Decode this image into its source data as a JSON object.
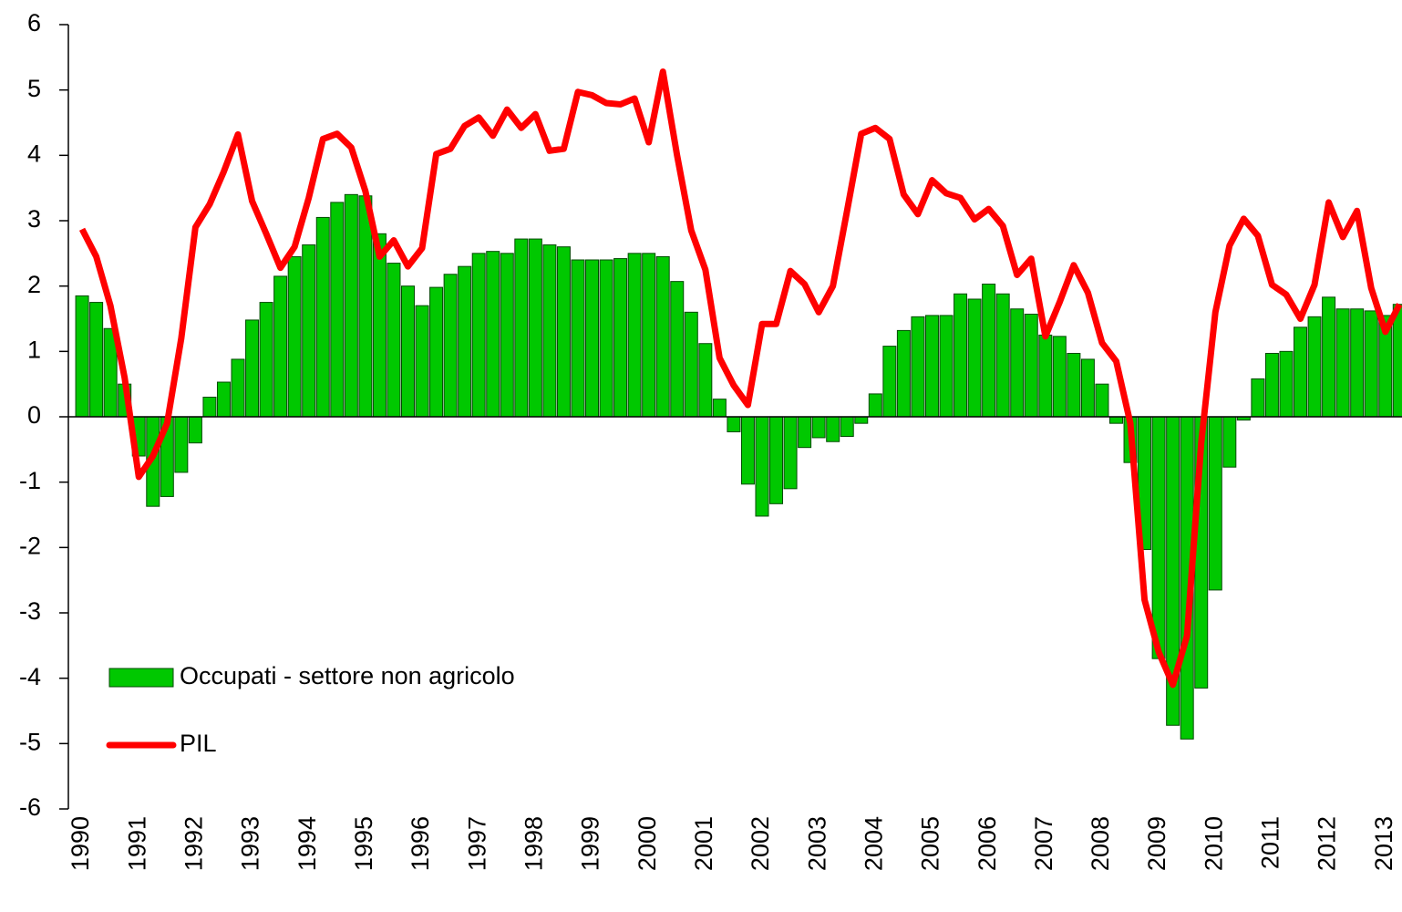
{
  "chart_data": {
    "type": "bar-line",
    "categories": [
      "1990",
      null,
      null,
      null,
      "1991",
      null,
      null,
      null,
      "1992",
      null,
      null,
      null,
      "1993",
      null,
      null,
      null,
      "1994",
      null,
      null,
      null,
      "1995",
      null,
      null,
      null,
      "1996",
      null,
      null,
      null,
      "1997",
      null,
      null,
      null,
      "1998",
      null,
      null,
      null,
      "1999",
      null,
      null,
      null,
      "2000",
      null,
      null,
      null,
      "2001",
      null,
      null,
      null,
      "2002",
      null,
      null,
      null,
      "2003",
      null,
      null,
      null,
      "2004",
      null,
      null,
      null,
      "2005",
      null,
      null,
      null,
      "2006",
      null,
      null,
      null,
      "2007",
      null,
      null,
      null,
      "2008",
      null,
      null,
      null,
      "2009",
      null,
      null,
      null,
      "2010",
      null,
      null,
      null,
      "2011",
      null,
      null,
      null,
      "2012",
      null,
      null,
      null,
      "2013",
      null
    ],
    "series": [
      {
        "name": "Occupati - settore non agricolo",
        "type": "bar",
        "color": "#00c800",
        "values": [
          1.85,
          1.75,
          1.35,
          0.5,
          -0.6,
          -1.37,
          -1.22,
          -0.85,
          -0.4,
          0.3,
          0.53,
          0.88,
          1.48,
          1.75,
          2.15,
          2.45,
          2.63,
          3.05,
          3.28,
          3.4,
          3.38,
          2.8,
          2.35,
          2.0,
          1.7,
          1.98,
          2.18,
          2.3,
          2.5,
          2.53,
          2.5,
          2.72,
          2.72,
          2.63,
          2.6,
          2.4,
          2.4,
          2.4,
          2.42,
          2.5,
          2.5,
          2.45,
          2.07,
          1.6,
          1.12,
          0.27,
          -0.23,
          -1.03,
          -1.52,
          -1.33,
          -1.1,
          -0.47,
          -0.32,
          -0.38,
          -0.3,
          -0.1,
          0.35,
          1.08,
          1.32,
          1.53,
          1.55,
          1.55,
          1.88,
          1.8,
          2.03,
          1.88,
          1.65,
          1.57,
          1.25,
          1.23,
          0.97,
          0.88,
          0.5,
          -0.1,
          -0.7,
          -2.03,
          -3.7,
          -4.72,
          -4.93,
          -4.15,
          -2.65,
          -0.77,
          -0.05,
          0.58,
          0.97,
          1.0,
          1.37,
          1.53,
          1.83,
          1.65,
          1.65,
          1.62,
          1.55,
          1.72
        ]
      },
      {
        "name": "PIL",
        "type": "line",
        "color": "#ff0000",
        "values": [
          2.87,
          2.45,
          1.7,
          0.6,
          -0.92,
          -0.6,
          -0.1,
          1.2,
          2.9,
          3.25,
          3.75,
          4.32,
          3.3,
          2.8,
          2.28,
          2.6,
          3.35,
          4.25,
          4.33,
          4.12,
          3.45,
          2.45,
          2.7,
          2.3,
          2.58,
          4.02,
          4.1,
          4.45,
          4.58,
          4.3,
          4.7,
          4.42,
          4.63,
          4.07,
          4.1,
          4.97,
          4.92,
          4.8,
          4.78,
          4.87,
          4.2,
          5.28,
          4.0,
          2.85,
          2.25,
          0.9,
          0.48,
          0.18,
          1.42,
          1.42,
          2.23,
          2.03,
          1.6,
          2.0,
          3.15,
          4.33,
          4.42,
          4.25,
          3.4,
          3.1,
          3.62,
          3.42,
          3.35,
          3.02,
          3.18,
          2.92,
          2.17,
          2.42,
          1.23,
          1.75,
          2.32,
          1.9,
          1.13,
          0.85,
          -0.1,
          -2.8,
          -3.6,
          -4.1,
          -3.35,
          -0.4,
          1.6,
          2.62,
          3.03,
          2.77,
          2.02,
          1.87,
          1.5,
          2.02,
          3.28,
          2.75,
          3.15,
          1.97,
          1.3,
          1.72
        ]
      }
    ],
    "ylim": [
      -6,
      6
    ],
    "yticks": [
      -6,
      -5,
      -4,
      -3,
      -2,
      -1,
      0,
      1,
      2,
      3,
      4,
      5,
      6
    ],
    "legend": "lower left"
  }
}
